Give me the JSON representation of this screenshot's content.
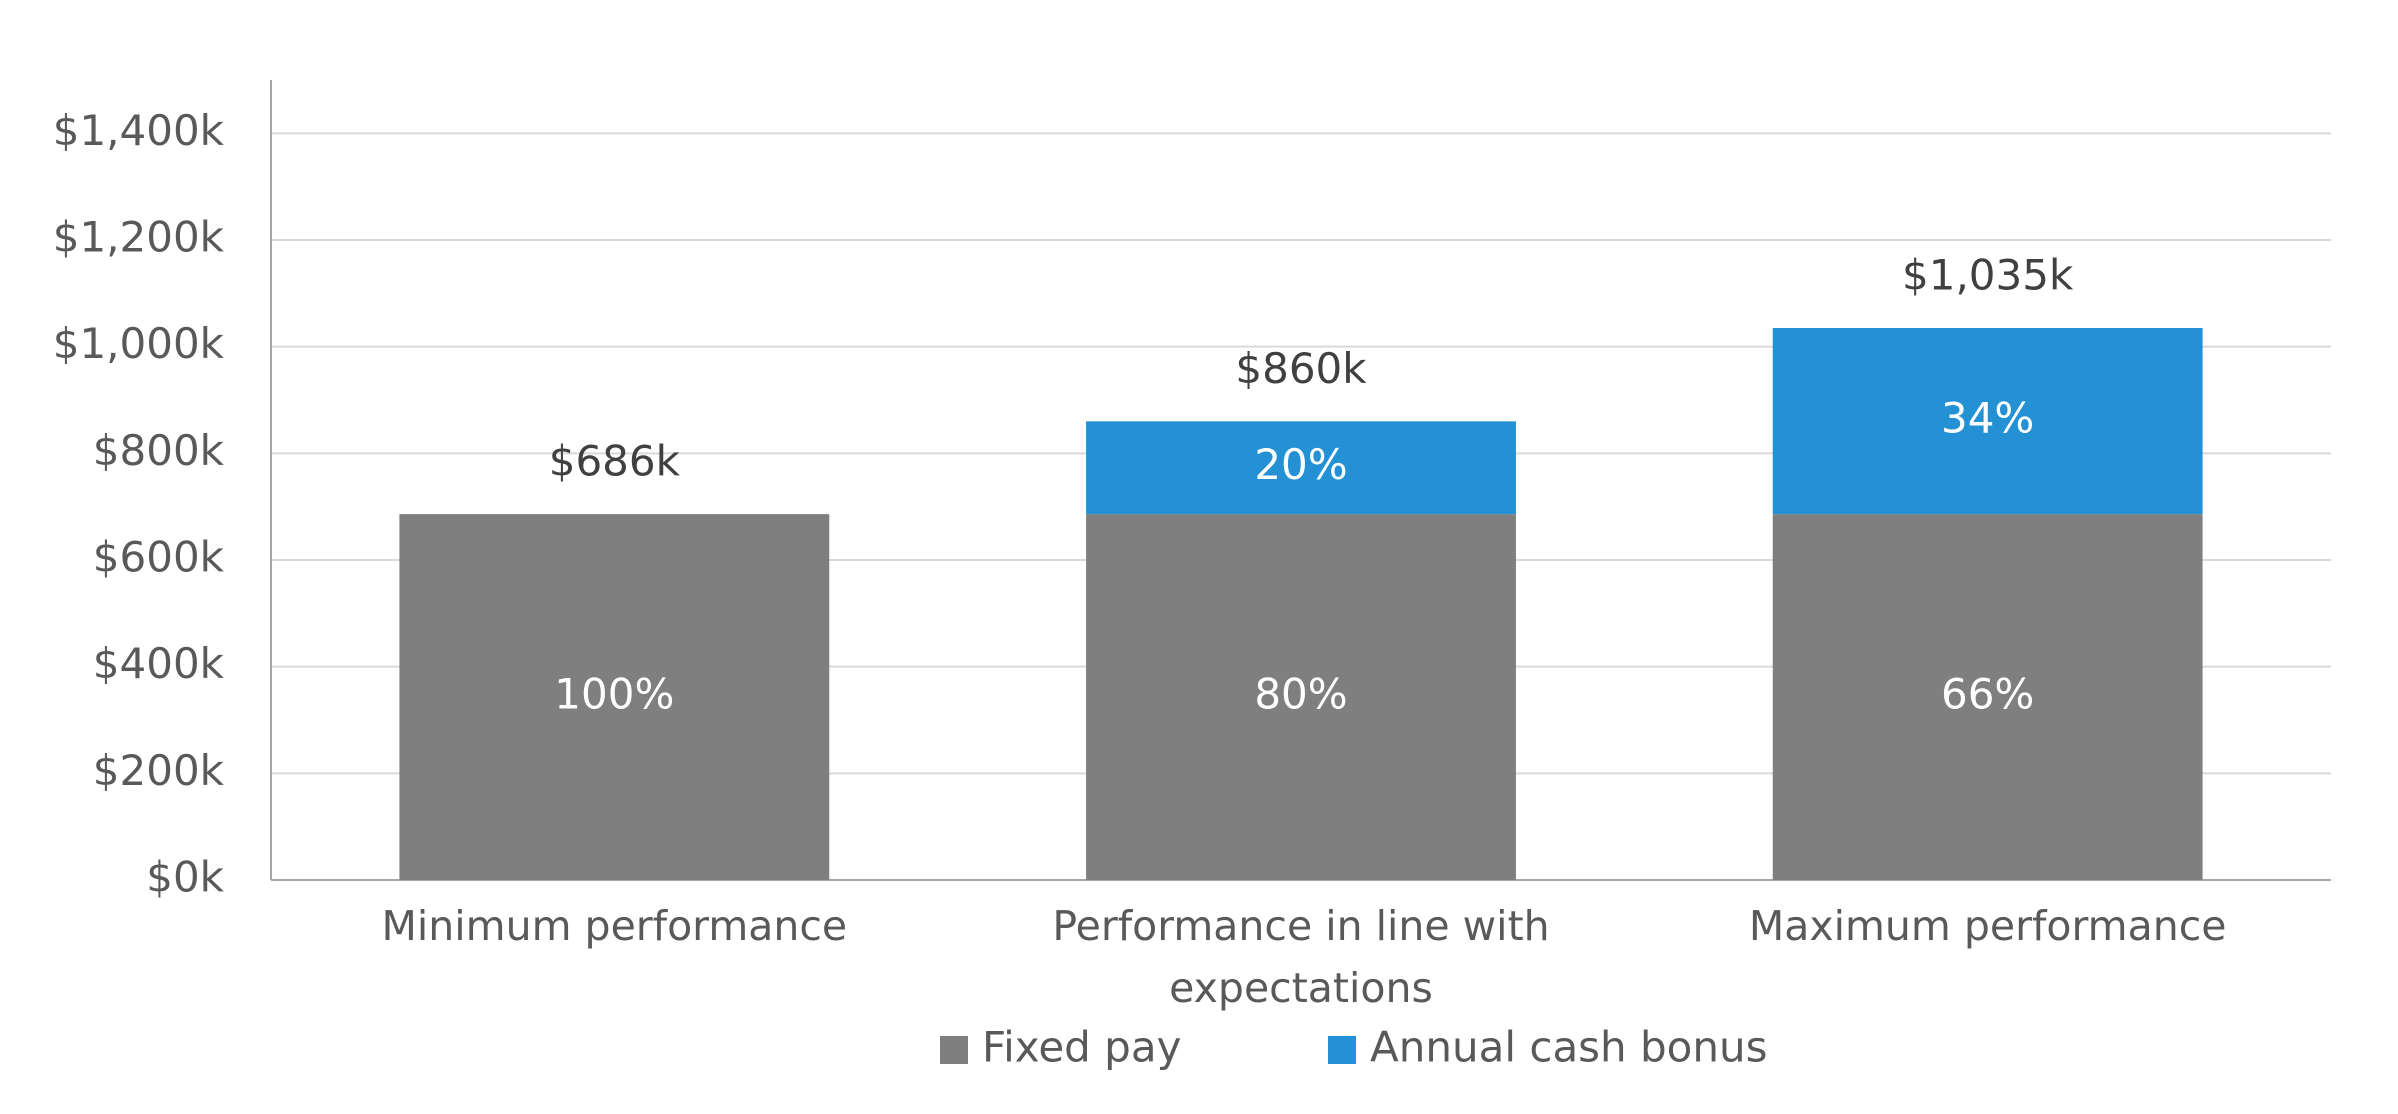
{
  "chart_data": {
    "type": "stacked_bar",
    "categories": [
      "Minimum performance",
      "Performance in line with expectations",
      "Maximum performance"
    ],
    "series": [
      {
        "name": "Fixed pay",
        "color": "#7f7f7f",
        "values": [
          686,
          686,
          686
        ],
        "share_labels": [
          "100%",
          "80%",
          "66%"
        ]
      },
      {
        "name": "Annual cash bonus",
        "color": "#2391d3",
        "values": [
          null,
          174,
          349
        ],
        "share_labels": [
          null,
          "20%",
          "34%"
        ]
      }
    ],
    "totals": {
      "values": [
        686,
        860,
        1035
      ],
      "value_labels": [
        "$686k",
        "$860k",
        "$1,035k"
      ]
    },
    "ylim": [
      0,
      1500
    ],
    "yticks": [
      {
        "value": 0,
        "label": "$0k"
      },
      {
        "value": 200,
        "label": "$200k"
      },
      {
        "value": 400,
        "label": "$400k"
      },
      {
        "value": 600,
        "label": "$600k"
      },
      {
        "value": 800,
        "label": "$800k"
      },
      {
        "value": 1000,
        "label": "$1,000k"
      },
      {
        "value": 1200,
        "label": "$1,200k"
      },
      {
        "value": 1400,
        "label": "$1,400k"
      }
    ],
    "grid": true,
    "legend": "bottom"
  }
}
